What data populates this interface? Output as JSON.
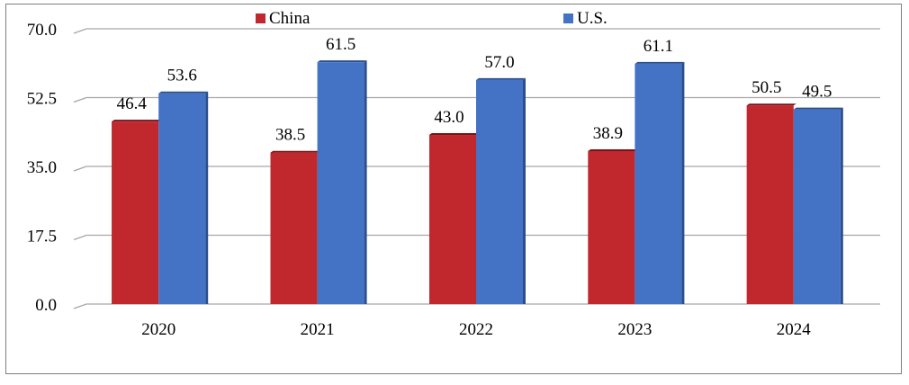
{
  "chart_data": {
    "type": "bar",
    "categories": [
      "2020",
      "2021",
      "2022",
      "2023",
      "2024"
    ],
    "series": [
      {
        "name": "China",
        "values": [
          46.4,
          38.5,
          43.0,
          38.9,
          50.5
        ],
        "color": "#c0282e",
        "side_color": "#7a1216"
      },
      {
        "name": "U.S.",
        "values": [
          53.6,
          61.5,
          57.0,
          61.1,
          49.5
        ],
        "color": "#4472c4",
        "side_color": "#2a4f8e"
      }
    ],
    "y_ticks": [
      "0.0",
      "17.5",
      "35.0",
      "52.5",
      "70.0"
    ],
    "ylim": [
      0,
      70
    ],
    "grid": true,
    "legend_position": "top",
    "title": "",
    "xlabel": "",
    "ylabel": ""
  }
}
